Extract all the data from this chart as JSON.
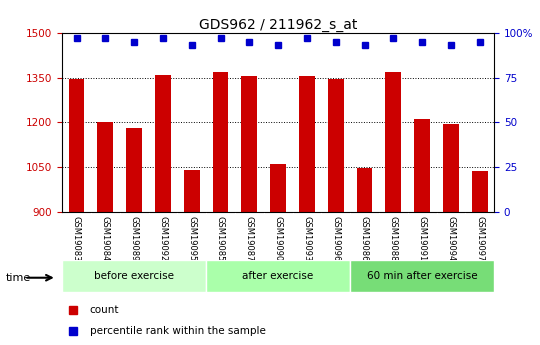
{
  "title": "GDS962 / 211962_s_at",
  "categories": [
    "GSM19083",
    "GSM19084",
    "GSM19089",
    "GSM19092",
    "GSM19095",
    "GSM19085",
    "GSM19087",
    "GSM19090",
    "GSM19093",
    "GSM19096",
    "GSM19086",
    "GSM19088",
    "GSM19091",
    "GSM19094",
    "GSM19097"
  ],
  "bar_values": [
    1345,
    1203,
    1182,
    1358,
    1040,
    1368,
    1355,
    1060,
    1355,
    1345,
    1048,
    1368,
    1210,
    1196,
    1038
  ],
  "percentile_values": [
    97,
    97,
    95,
    97,
    93,
    97,
    95,
    93,
    97,
    95,
    93,
    97,
    95,
    93,
    95
  ],
  "bar_color": "#cc0000",
  "percentile_color": "#0000cc",
  "ylim_left": [
    900,
    1500
  ],
  "ylim_right": [
    0,
    100
  ],
  "yticks_left": [
    900,
    1050,
    1200,
    1350,
    1500
  ],
  "yticks_right": [
    0,
    25,
    50,
    75,
    100
  ],
  "ytick_labels_right": [
    "0",
    "25",
    "50",
    "75",
    "100%"
  ],
  "grid_lines": [
    1050,
    1200,
    1350
  ],
  "groups": [
    {
      "label": "before exercise",
      "start": 0,
      "end": 5,
      "color": "#ccffcc"
    },
    {
      "label": "after exercise",
      "start": 5,
      "end": 10,
      "color": "#aaffaa"
    },
    {
      "label": "60 min after exercise",
      "start": 10,
      "end": 15,
      "color": "#77dd77"
    }
  ],
  "legend_count_label": "count",
  "legend_percentile_label": "percentile rank within the sample",
  "time_label": "time",
  "background_color": "#ffffff",
  "tick_label_color_left": "#cc0000",
  "tick_label_color_right": "#0000cc",
  "xlabel_bg": "#cccccc",
  "figsize": [
    5.4,
    3.45
  ],
  "dpi": 100
}
